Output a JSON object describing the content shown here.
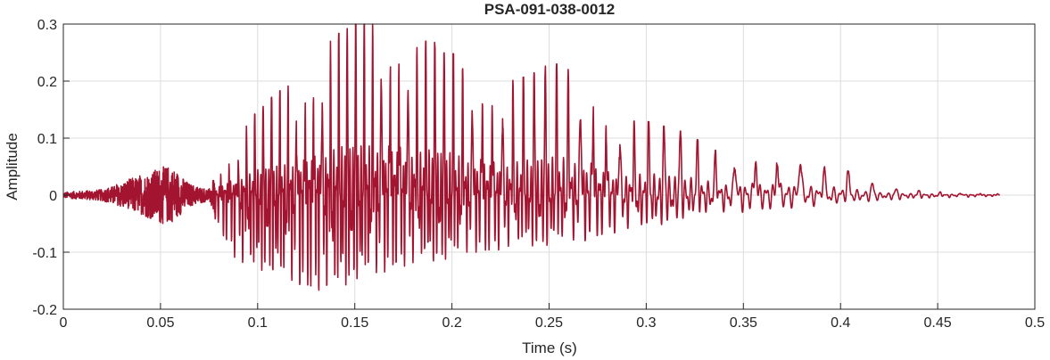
{
  "chart_data": {
    "type": "line",
    "title": "PSA-091-038-0012",
    "xlabel": "Time (s)",
    "ylabel": "Amplitude",
    "xlim": [
      0,
      0.5
    ],
    "ylim": [
      -0.2,
      0.3
    ],
    "xticks": [
      0,
      0.05,
      0.1,
      0.15,
      0.2,
      0.25,
      0.3,
      0.35,
      0.4,
      0.45,
      0.5
    ],
    "xtick_labels": [
      "0",
      "0.05",
      "0.1",
      "0.15",
      "0.2",
      "0.25",
      "0.3",
      "0.35",
      "0.4",
      "0.45",
      "0.5"
    ],
    "yticks": [
      -0.2,
      -0.1,
      0,
      0.1,
      0.2,
      0.3
    ],
    "ytick_labels": [
      "-0.2",
      "-0.1",
      "0",
      "0.1",
      "0.2",
      "0.3"
    ],
    "grid": true,
    "line_color": "#A2142F",
    "series": [
      {
        "upper_envelope": {
          "x": [
            0,
            0.02,
            0.035,
            0.05,
            0.055,
            0.065,
            0.075,
            0.08,
            0.085,
            0.09,
            0.1,
            0.11,
            0.12,
            0.13,
            0.14,
            0.15,
            0.16,
            0.17,
            0.18,
            0.19,
            0.2,
            0.21,
            0.22,
            0.23,
            0.24,
            0.25,
            0.26,
            0.27,
            0.28,
            0.29,
            0.3,
            0.31,
            0.32,
            0.33,
            0.34,
            0.35,
            0.36,
            0.37,
            0.38,
            0.39,
            0.4,
            0.41,
            0.42,
            0.43,
            0.44,
            0.45,
            0.46,
            0.47,
            0.48
          ],
          "values": [
            0.005,
            0.01,
            0.025,
            0.05,
            0.055,
            0.02,
            0.01,
            0.05,
            0.08,
            0.1,
            0.15,
            0.18,
            0.2,
            0.24,
            0.28,
            0.3,
            0.3,
            0.29,
            0.27,
            0.27,
            0.25,
            0.22,
            0.2,
            0.2,
            0.21,
            0.23,
            0.23,
            0.2,
            0.14,
            0.13,
            0.13,
            0.12,
            0.11,
            0.09,
            0.07,
            0.07,
            0.07,
            0.07,
            0.07,
            0.05,
            0.05,
            0.03,
            0.015,
            0.01,
            0.008,
            0.006,
            0.005,
            0.004,
            0.003
          ]
        },
        "lower_envelope": {
          "x": [
            0,
            0.02,
            0.035,
            0.05,
            0.055,
            0.065,
            0.075,
            0.08,
            0.085,
            0.09,
            0.1,
            0.11,
            0.12,
            0.13,
            0.14,
            0.15,
            0.16,
            0.17,
            0.18,
            0.19,
            0.2,
            0.21,
            0.22,
            0.23,
            0.24,
            0.25,
            0.26,
            0.27,
            0.28,
            0.29,
            0.3,
            0.31,
            0.32,
            0.33,
            0.34,
            0.35,
            0.36,
            0.37,
            0.38,
            0.39,
            0.4,
            0.41,
            0.42,
            0.43,
            0.44,
            0.45,
            0.46,
            0.47,
            0.48
          ],
          "values": [
            -0.005,
            -0.01,
            -0.03,
            -0.05,
            -0.05,
            -0.02,
            -0.01,
            -0.06,
            -0.09,
            -0.12,
            -0.13,
            -0.14,
            -0.16,
            -0.17,
            -0.17,
            -0.15,
            -0.14,
            -0.13,
            -0.12,
            -0.12,
            -0.11,
            -0.1,
            -0.1,
            -0.09,
            -0.09,
            -0.09,
            -0.08,
            -0.08,
            -0.07,
            -0.06,
            -0.06,
            -0.05,
            -0.04,
            -0.035,
            -0.03,
            -0.03,
            -0.025,
            -0.025,
            -0.02,
            -0.02,
            -0.015,
            -0.012,
            -0.01,
            -0.008,
            -0.006,
            -0.005,
            -0.004,
            -0.003,
            -0.002
          ]
        },
        "x_start": 0,
        "x_end": 0.482
      }
    ]
  }
}
